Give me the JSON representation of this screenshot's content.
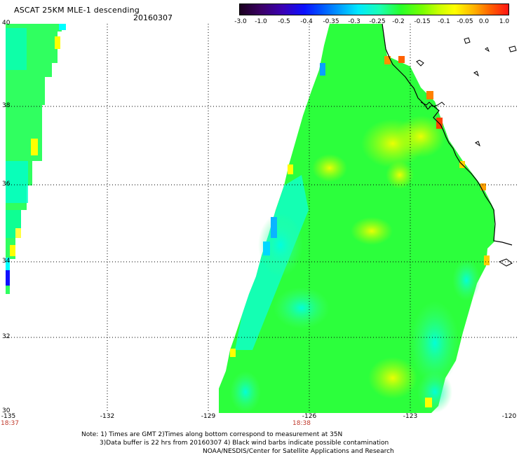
{
  "header": {
    "title": "ASCAT 25KM MLE-1 descending",
    "date": "20160307"
  },
  "colorbar": {
    "ticks": [
      "-3.0",
      "-1.0",
      "-0.5",
      "-0.4",
      "-0.35",
      "-0.3",
      "-0.25",
      "-0.2",
      "-0.15",
      "-0.1",
      "-0.05",
      "0.0",
      "1.0"
    ]
  },
  "axes": {
    "lat_labels": [
      "40",
      "38",
      "36",
      "34",
      "32",
      "30"
    ],
    "lon_labels": [
      "-135",
      "-132",
      "-129",
      "-126",
      "-123",
      "-120"
    ],
    "time_labels": [
      "18:37",
      "18:38"
    ]
  },
  "notes": {
    "line1": "Note: 1) Times are GMT 2)Times along bottom correspond to measurement at 35N",
    "line2": "3)Data buffer is 22 hrs from 20160307 4) Black wind barbs indicate possible contamination",
    "line3": "NOAA/NESDIS/Center for Satellite Applications and Research"
  },
  "colors": {
    "grid": "#000000",
    "time_label": "#c0392b",
    "swath_low": "#00ffff",
    "swath_mid": "#00ff00",
    "swath_high": "#ffff00"
  }
}
